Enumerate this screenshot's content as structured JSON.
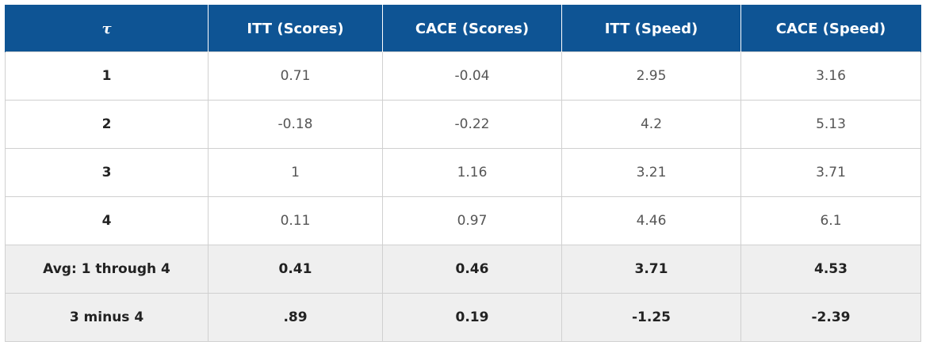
{
  "table": {
    "headers": [
      "τ",
      "ITT (Scores)",
      "CACE (Scores)",
      "ITT (Speed)",
      "CACE (Speed)"
    ],
    "rows": [
      [
        "1",
        "0.71",
        "-0.04",
        "2.95",
        "3.16"
      ],
      [
        "2",
        "-0.18",
        "-0.22",
        "4.2",
        "5.13"
      ],
      [
        "3",
        "1",
        "1.16",
        "3.21",
        "3.71"
      ],
      [
        "4",
        "0.11",
        "0.97",
        "4.46",
        "6.1"
      ],
      [
        "Avg: 1 through 4",
        "0.41",
        "0.46",
        "3.71",
        "4.53"
      ],
      [
        "3 minus 4",
        ".89",
        "0.19",
        "-1.25",
        "-2.39"
      ]
    ]
  },
  "colors": {
    "header_bg": "#0e5494",
    "header_text": "#ffffff",
    "summary_bg": "#efefef",
    "border": "#d0d0d0"
  }
}
